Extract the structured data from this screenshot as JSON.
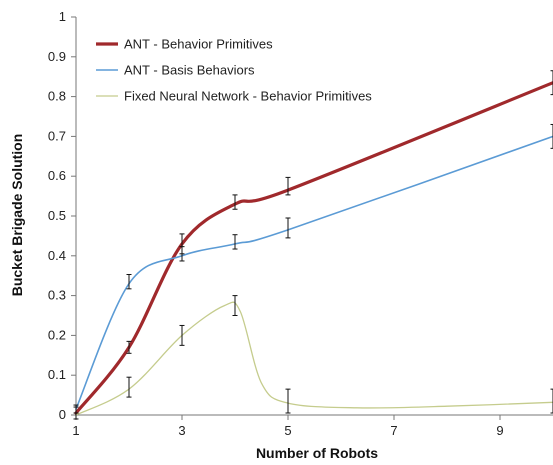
{
  "chart_data": {
    "type": "line",
    "title": "",
    "xlabel": "Number of Robots",
    "ylabel": "Bucket Brigade Solution",
    "xlim": [
      1,
      10
    ],
    "ylim": [
      0,
      1
    ],
    "x_ticks": [
      "1",
      "3",
      "5",
      "7",
      "9"
    ],
    "x_tick_values": [
      1,
      3,
      5,
      7,
      9
    ],
    "y_ticks": [
      "0",
      "0.1",
      "0.2",
      "0.3",
      "0.4",
      "0.5",
      "0.6",
      "0.7",
      "0.8",
      "0.9",
      "1"
    ],
    "y_tick_values": [
      0,
      0.1,
      0.2,
      0.3,
      0.4,
      0.5,
      0.6,
      0.7,
      0.8,
      0.9,
      1
    ],
    "grid": false,
    "legend_position": "top-left",
    "series": [
      {
        "name": "ANT - Behavior Primitives",
        "color": "#a0292c",
        "curve": [
          [
            1,
            0.005
          ],
          [
            2,
            0.17
          ],
          [
            3,
            0.43
          ],
          [
            4,
            0.53
          ],
          [
            5,
            0.565
          ],
          [
            10,
            0.835
          ]
        ],
        "errorbars": [
          [
            1,
            0.005,
            0.015
          ],
          [
            2,
            0.17,
            0.015
          ],
          [
            3,
            0.43,
            0.025
          ],
          [
            4,
            0.535,
            0.018
          ],
          [
            5,
            0.575,
            0.022
          ],
          [
            10,
            0.835,
            0.03
          ]
        ]
      },
      {
        "name": "ANT - Basis Behaviors",
        "color": "#5b9bd5",
        "curve": [
          [
            1,
            0.015
          ],
          [
            2,
            0.33
          ],
          [
            3,
            0.4
          ],
          [
            4,
            0.43
          ],
          [
            5,
            0.465
          ],
          [
            10,
            0.7
          ]
        ],
        "errorbars": [
          [
            1,
            0.015,
            0.01
          ],
          [
            2,
            0.335,
            0.018
          ],
          [
            3,
            0.405,
            0.018
          ],
          [
            4,
            0.435,
            0.018
          ],
          [
            5,
            0.47,
            0.025
          ],
          [
            10,
            0.7,
            0.03
          ]
        ]
      },
      {
        "name": "Fixed Neural Network - Behavior Primitives",
        "color": "#c5cc8d",
        "curve": [
          [
            1,
            0.0
          ],
          [
            2,
            0.065
          ],
          [
            3,
            0.2
          ],
          [
            3.8,
            0.275
          ],
          [
            4.1,
            0.26
          ],
          [
            4.5,
            0.08
          ],
          [
            5,
            0.03
          ],
          [
            6.3,
            0.018
          ],
          [
            8,
            0.022
          ],
          [
            10,
            0.032
          ]
        ],
        "errorbars": [
          [
            2,
            0.07,
            0.025
          ],
          [
            3,
            0.2,
            0.025
          ],
          [
            4,
            0.275,
            0.025
          ],
          [
            5,
            0.035,
            0.03
          ],
          [
            10,
            0.035,
            0.03
          ]
        ]
      }
    ]
  }
}
